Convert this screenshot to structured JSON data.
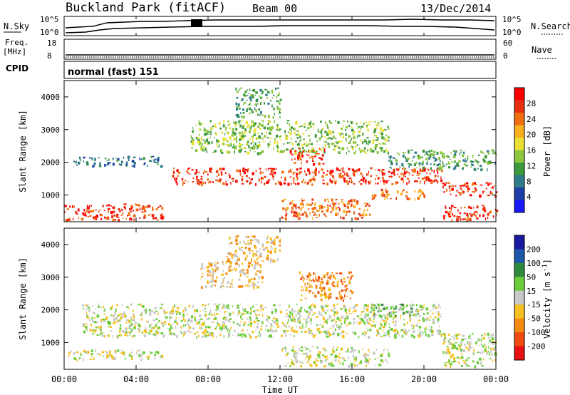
{
  "header": {
    "station": "Buckland Park (fitACF)",
    "beam": "Beam 00",
    "date": "13/Dec/2014"
  },
  "noise_panel": {
    "left_label": "N.Sky",
    "right_label": "N.Search",
    "left_ticks": [
      "10^5",
      "10^0"
    ],
    "right_ticks": [
      "10^5",
      "10^0"
    ]
  },
  "freq_panel": {
    "left_label_line1": "Freq.",
    "left_label_line2": "[MHz]",
    "left_ticks": [
      "18",
      "8"
    ],
    "right_label": "Nave",
    "right_ticks": [
      "60",
      "0"
    ]
  },
  "cpid_panel": {
    "label": "CPID",
    "text": "normal (fast) 151"
  },
  "time_axis": {
    "label": "Time UT",
    "ticks": [
      "00:00",
      "04:00",
      "08:00",
      "12:00",
      "16:00",
      "20:00",
      "00:00"
    ]
  },
  "chart_data": [
    {
      "type": "heatmap",
      "quantity": "Power",
      "ylabel": "Slant Range [km]",
      "xlabel": "Time UT",
      "colorbar_label": "Power [dB]",
      "colorbar_ticks": [
        "4",
        "8",
        "12",
        "16",
        "20",
        "24",
        "28"
      ],
      "colorscale": [
        "#1a1aff",
        "#1f3fa8",
        "#2e7b8a",
        "#3c9a3c",
        "#8cc63f",
        "#e8e030",
        "#f8b020",
        "#f07010",
        "#e83010",
        "#ff0000"
      ],
      "x_range_hours": [
        0,
        24
      ],
      "y_range_km": [
        180,
        4500
      ],
      "yticks": [
        1000,
        2000,
        3000,
        4000
      ],
      "features": [
        {
          "t0": 0,
          "t1": 5.5,
          "r0": 250,
          "r1": 750,
          "level": 8
        },
        {
          "t0": 0.5,
          "t1": 5.5,
          "r0": 1900,
          "r1": 2200,
          "level": 2
        },
        {
          "t0": 6,
          "t1": 21,
          "r0": 1350,
          "r1": 1850,
          "level": 8
        },
        {
          "t0": 7,
          "t1": 18,
          "r0": 2300,
          "r1": 3300,
          "level": 4
        },
        {
          "t0": 9.5,
          "t1": 12,
          "r0": 3400,
          "r1": 4300,
          "level": 3
        },
        {
          "t0": 12.5,
          "t1": 14.5,
          "r0": 1950,
          "r1": 2450,
          "level": 8
        },
        {
          "t0": 12,
          "t1": 17,
          "r0": 300,
          "r1": 900,
          "level": 7
        },
        {
          "t0": 17,
          "t1": 20,
          "r0": 900,
          "r1": 1200,
          "level": 7
        },
        {
          "t0": 21,
          "t1": 24,
          "r0": 250,
          "r1": 700,
          "level": 8
        },
        {
          "t0": 21,
          "t1": 24,
          "r0": 1000,
          "r1": 1400,
          "level": 8
        },
        {
          "t0": 18,
          "t1": 24,
          "r0": 1800,
          "r1": 2400,
          "level": 3
        }
      ]
    },
    {
      "type": "heatmap",
      "quantity": "Velocity",
      "ylabel": "Slant Range [km]",
      "xlabel": "Time UT",
      "colorbar_label": "Velocity [m s^-1]",
      "colorbar_ticks": [
        "200",
        "100",
        "50",
        "15",
        "-15",
        "-50",
        "-100",
        "-200"
      ],
      "colorscale": [
        "#1a1aa0",
        "#1f58a8",
        "#2e8a3c",
        "#6ccd3c",
        "#c8c8c8",
        "#f5c020",
        "#f58a10",
        "#f04a10",
        "#e81010"
      ],
      "x_range_hours": [
        0,
        24
      ],
      "y_range_km": [
        180,
        4500
      ],
      "yticks": [
        1000,
        2000,
        3000,
        4000
      ],
      "features": [
        {
          "t0": 0,
          "t1": 5.5,
          "r0": 500,
          "r1": 800,
          "level": 4
        },
        {
          "t0": 1,
          "t1": 21,
          "r0": 1200,
          "r1": 2200,
          "level": 4
        },
        {
          "t0": 12,
          "t1": 18,
          "r0": 300,
          "r1": 900,
          "level": 4
        },
        {
          "t0": 7.5,
          "t1": 11,
          "r0": 2700,
          "r1": 3500,
          "level": 5
        },
        {
          "t0": 17,
          "t1": 20,
          "r0": 1800,
          "r1": 2200,
          "level": 3
        },
        {
          "t0": 13,
          "t1": 16,
          "r0": 2300,
          "r1": 3200,
          "level": 6
        },
        {
          "t0": 9,
          "t1": 12,
          "r0": 3500,
          "r1": 4300,
          "level": 5
        },
        {
          "t0": 21,
          "t1": 24,
          "r0": 300,
          "r1": 1300,
          "level": 4
        }
      ]
    }
  ]
}
